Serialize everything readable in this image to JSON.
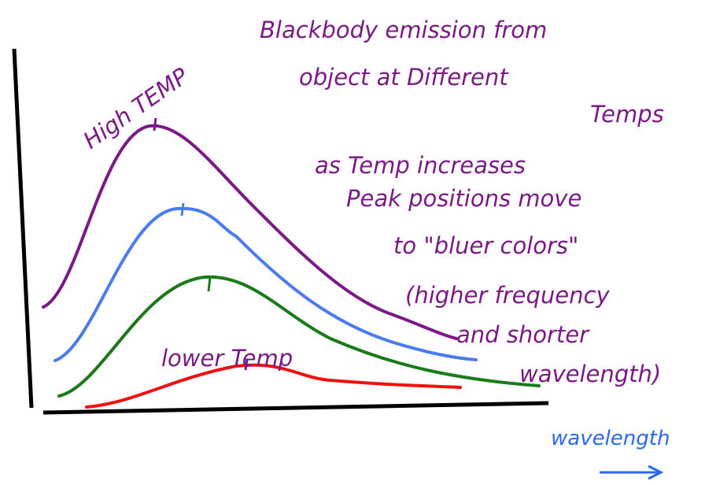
{
  "diagram": {
    "title": {
      "lines": [
        "Blackbody emission from",
        "object at Different",
        "Temps"
      ]
    },
    "high_label": "High TEMP",
    "low_label": "lower Temp",
    "note": {
      "lines": [
        "as Temp increases",
        "Peak positions move",
        "to \"bluer colors\"",
        "(higher frequency",
        "and shorter",
        "wavelength)"
      ]
    },
    "x_axis_label": "wavelength"
  }
}
